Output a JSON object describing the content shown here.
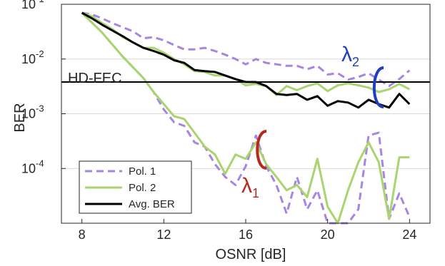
{
  "chart_data": {
    "type": "line",
    "xlabel": "OSNR [dB]",
    "ylabel": "BER",
    "xlim": [
      7,
      25
    ],
    "ylim": [
      1e-05,
      0.1
    ],
    "yscale": "log",
    "grid": "horizontal",
    "x_ticks": [
      "8",
      "12",
      "16",
      "20",
      "24"
    ],
    "y_ticks": [
      {
        "base": "10",
        "exp": "-1"
      },
      {
        "base": "10",
        "exp": "-2"
      },
      {
        "base": "10",
        "exp": "-3"
      },
      {
        "base": "10",
        "exp": "-4"
      }
    ],
    "threshold": {
      "label": "HD-FEC",
      "value": 0.0038
    },
    "annotations": [
      {
        "label": "λ",
        "sub": "2",
        "color": "#1f3fbf"
      },
      {
        "label": "λ",
        "sub": "1",
        "color": "#b52a1c"
      }
    ],
    "legend": {
      "position": "bottom-left",
      "entries": [
        {
          "name": "Pol. 1",
          "color": "#a785e3",
          "dash": true
        },
        {
          "name": "Pol. 2",
          "color": "#a9d46f",
          "dash": false
        },
        {
          "name": "Avg. BER",
          "color": "#000000",
          "dash": false
        }
      ]
    },
    "series": [
      {
        "name": "Pol. 1",
        "group": "λ2",
        "color": "#a785e3",
        "dash": true,
        "x": [
          8,
          8.5,
          9,
          9.5,
          10,
          10.5,
          11,
          11.5,
          12,
          12.5,
          13,
          13.5,
          14,
          14.5,
          15,
          15.5,
          16,
          16.5,
          17,
          17.5,
          18,
          18.5,
          19,
          19.5,
          20,
          20.5,
          21,
          21.5,
          22,
          22.5,
          23,
          23.5,
          24
        ],
        "y": [
          0.07,
          0.065,
          0.055,
          0.045,
          0.038,
          0.032,
          0.024,
          0.025,
          0.022,
          0.018,
          0.015,
          0.015,
          0.016,
          0.014,
          0.012,
          0.01,
          0.008,
          0.01,
          0.0085,
          0.008,
          0.0075,
          0.0075,
          0.0065,
          0.0075,
          0.0052,
          0.0055,
          0.0042,
          0.0047,
          0.0055,
          0.0042,
          0.0032,
          0.0043,
          0.0062
        ]
      },
      {
        "name": "Pol. 2",
        "group": "λ2",
        "color": "#a9d46f",
        "dash": false,
        "x": [
          8,
          8.5,
          9,
          9.5,
          10,
          10.5,
          11,
          11.5,
          12,
          12.5,
          13,
          13.5,
          14,
          14.5,
          15,
          15.5,
          16,
          16.5,
          17,
          17.5,
          18,
          18.5,
          19,
          19.5,
          20,
          20.5,
          21,
          21.5,
          22,
          22.5,
          23,
          23.5,
          24
        ],
        "y": [
          0.07,
          0.06,
          0.045,
          0.035,
          0.025,
          0.02,
          0.016,
          0.016,
          0.013,
          0.01,
          0.008,
          0.006,
          0.0058,
          0.005,
          0.005,
          0.0043,
          0.0033,
          0.0035,
          0.0032,
          0.0022,
          0.0032,
          0.0027,
          0.0032,
          0.0036,
          0.0026,
          0.0033,
          0.0036,
          0.0033,
          0.003,
          0.0025,
          0.0028,
          0.0035,
          0.0028
        ]
      },
      {
        "name": "Avg. BER",
        "group": "λ2",
        "color": "#000000",
        "dash": false,
        "x": [
          8,
          8.5,
          9,
          9.5,
          10,
          10.5,
          11,
          11.5,
          12,
          12.5,
          13,
          13.5,
          14,
          14.5,
          15,
          15.5,
          16,
          16.5,
          17,
          17.5,
          18,
          18.5,
          19,
          19.5,
          20,
          20.5,
          21,
          21.5,
          22,
          22.5,
          23,
          23.5,
          24
        ],
        "y": [
          0.07,
          0.055,
          0.042,
          0.033,
          0.026,
          0.02,
          0.016,
          0.014,
          0.012,
          0.0095,
          0.0085,
          0.0063,
          0.006,
          0.0058,
          0.005,
          0.0043,
          0.0038,
          0.0038,
          0.0032,
          0.0023,
          0.0022,
          0.0023,
          0.0018,
          0.0021,
          0.0014,
          0.0017,
          0.0016,
          0.0013,
          0.0018,
          0.0015,
          0.0013,
          0.0023,
          0.0015
        ]
      },
      {
        "name": "Pol. 1",
        "group": "λ1",
        "color": "#a785e3",
        "dash": true,
        "x": [
          8,
          9,
          10,
          11,
          11.5,
          12,
          12.5,
          13,
          13.5,
          14,
          14.5,
          15,
          15.5,
          16,
          16.5,
          17,
          17.5,
          18,
          18.5,
          19,
          19.5,
          20,
          20.5,
          21,
          21.5,
          22,
          22.5,
          23,
          23.5,
          24
        ],
        "y": [
          0.07,
          0.03,
          0.011,
          0.0045,
          0.0025,
          0.0012,
          0.0007,
          0.0006,
          0.0003,
          0.00025,
          0.00012,
          7e-05,
          5e-05,
          0.00011,
          0.0004,
          0.00011,
          5e-05,
          1.5e-05,
          7e-05,
          1.8e-05,
          4e-05,
          1e-05,
          1e-05,
          1e-05,
          1.8e-05,
          0.0004,
          0.00045,
          1.2e-05,
          3.5e-05,
          1.3e-05
        ]
      },
      {
        "name": "Pol. 2",
        "group": "λ1",
        "color": "#a9d46f",
        "dash": false,
        "x": [
          8,
          9,
          10,
          11,
          11.5,
          12,
          12.5,
          13,
          13.5,
          14,
          14.5,
          15,
          15.5,
          16,
          16.5,
          17,
          17.5,
          18,
          18.5,
          19,
          19.5,
          20,
          20.5,
          21,
          21.5,
          22,
          22.5,
          23,
          23.5,
          24
        ],
        "y": [
          0.07,
          0.03,
          0.011,
          0.0045,
          0.0025,
          0.0015,
          0.0009,
          0.0008,
          0.00045,
          0.00025,
          0.00018,
          8e-05,
          0.00018,
          0.00015,
          0.0003,
          0.00012,
          7e-05,
          4e-05,
          5e-05,
          3e-05,
          0.00015,
          2e-05,
          1e-05,
          4e-05,
          0.00013,
          0.0003,
          0.00013,
          1.2e-05,
          0.00016,
          0.00016
        ]
      }
    ]
  }
}
